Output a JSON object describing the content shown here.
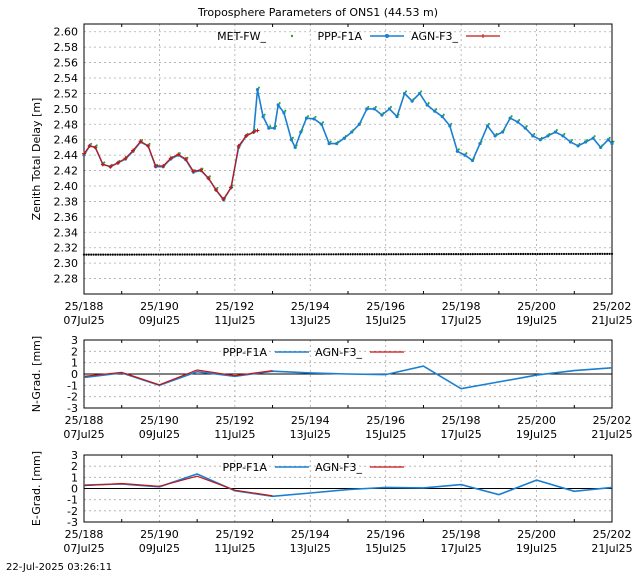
{
  "title": "Troposphere Parameters of ONS1 (44.53 m)",
  "timestamp": "22-Jul-2025 03:26:11",
  "colors": {
    "met": "#22aa22",
    "ppp": "#1a7fd0",
    "agn": "#cc1111",
    "zero_line": "#000000",
    "grid": "#aaaaaa"
  },
  "x_ticks": [
    {
      "doy": "25/188",
      "date": "07Jul25"
    },
    {
      "doy": "25/190",
      "date": "09Jul25"
    },
    {
      "doy": "25/192",
      "date": "11Jul25"
    },
    {
      "doy": "25/194",
      "date": "13Jul25"
    },
    {
      "doy": "25/196",
      "date": "15Jul25"
    },
    {
      "doy": "25/198",
      "date": "17Jul25"
    },
    {
      "doy": "25/200",
      "date": "19Jul25"
    },
    {
      "doy": "25/202",
      "date": "21Jul25"
    }
  ],
  "chart_data": [
    {
      "type": "line",
      "ylabel": "Zenith Total Delay [m]",
      "xlim": [
        188,
        202
      ],
      "ylim": [
        2.26,
        2.61
      ],
      "yticks": [
        "2.28",
        "2.30",
        "2.32",
        "2.34",
        "2.36",
        "2.38",
        "2.40",
        "2.42",
        "2.44",
        "2.46",
        "2.48",
        "2.50",
        "2.52",
        "2.54",
        "2.56",
        "2.58",
        "2.60"
      ],
      "grid": true,
      "legend_position": "top",
      "series": [
        {
          "name": "MET-FW_",
          "style": "dots",
          "color": "#22aa22",
          "x": [
            188.0,
            202.0
          ],
          "y": [
            2.311,
            2.312
          ]
        },
        {
          "name": "PPP-F1A",
          "style": "line-points",
          "color": "#1a7fd0",
          "x": [
            188.0,
            188.15,
            188.3,
            188.5,
            188.7,
            188.9,
            189.1,
            189.3,
            189.5,
            189.7,
            189.9,
            190.1,
            190.3,
            190.5,
            190.7,
            190.9,
            191.1,
            191.3,
            191.5,
            191.7,
            191.9,
            192.1,
            192.3,
            192.5,
            192.6,
            192.75,
            192.9,
            193.05,
            193.15,
            193.3,
            193.5,
            193.6,
            193.75,
            193.9,
            194.1,
            194.3,
            194.5,
            194.7,
            194.9,
            195.1,
            195.3,
            195.5,
            195.7,
            195.9,
            196.1,
            196.3,
            196.5,
            196.7,
            196.9,
            197.1,
            197.3,
            197.5,
            197.7,
            197.9,
            198.1,
            198.3,
            198.5,
            198.7,
            198.9,
            199.1,
            199.3,
            199.5,
            199.7,
            199.9,
            200.1,
            200.3,
            200.5,
            200.7,
            200.9,
            201.1,
            201.3,
            201.5,
            201.7,
            201.9,
            202.0
          ],
          "y": [
            2.44,
            2.452,
            2.45,
            2.428,
            2.425,
            2.43,
            2.435,
            2.445,
            2.457,
            2.452,
            2.425,
            2.425,
            2.435,
            2.44,
            2.434,
            2.418,
            2.42,
            2.41,
            2.395,
            2.382,
            2.398,
            2.45,
            2.465,
            2.47,
            2.525,
            2.49,
            2.475,
            2.475,
            2.505,
            2.495,
            2.46,
            2.45,
            2.47,
            2.488,
            2.487,
            2.48,
            2.455,
            2.455,
            2.462,
            2.47,
            2.48,
            2.5,
            2.5,
            2.492,
            2.5,
            2.49,
            2.52,
            2.51,
            2.52,
            2.505,
            2.497,
            2.49,
            2.478,
            2.445,
            2.44,
            2.433,
            2.455,
            2.478,
            2.465,
            2.47,
            2.488,
            2.483,
            2.475,
            2.465,
            2.46,
            2.465,
            2.47,
            2.465,
            2.457,
            2.452,
            2.457,
            2.462,
            2.45,
            2.46,
            2.455
          ]
        },
        {
          "name": "AGN-F3_",
          "style": "line-crosses",
          "color": "#cc1111",
          "x": [
            188.0,
            188.15,
            188.3,
            188.5,
            188.7,
            188.9,
            189.1,
            189.3,
            189.5,
            189.7,
            189.9,
            190.1,
            190.3,
            190.5,
            190.7,
            190.9,
            191.1,
            191.3,
            191.5,
            191.7,
            191.9,
            192.1,
            192.3,
            192.5,
            192.6
          ],
          "y": [
            2.442,
            2.452,
            2.45,
            2.428,
            2.425,
            2.43,
            2.436,
            2.446,
            2.458,
            2.452,
            2.426,
            2.426,
            2.436,
            2.441,
            2.435,
            2.419,
            2.421,
            2.41,
            2.395,
            2.383,
            2.398,
            2.452,
            2.465,
            2.47,
            2.472
          ]
        }
      ]
    },
    {
      "type": "line",
      "ylabel": "N-Grad. [mm]",
      "xlim": [
        188,
        202
      ],
      "ylim": [
        -3,
        3
      ],
      "yticks": [
        "-3",
        "-2",
        "-1",
        "0",
        "1",
        "2",
        "3"
      ],
      "grid": true,
      "legend_position": "top",
      "series": [
        {
          "name": "PPP-F1A",
          "color": "#1a7fd0",
          "x": [
            188,
            189,
            190,
            191,
            192,
            193,
            194,
            195,
            196,
            197,
            198,
            199,
            200,
            201,
            202
          ],
          "y": [
            -0.3,
            0.1,
            -1.0,
            0.2,
            -0.2,
            0.25,
            0.1,
            0.0,
            -0.05,
            0.7,
            -1.3,
            -0.7,
            -0.1,
            0.3,
            0.55
          ]
        },
        {
          "name": "AGN-F3_",
          "color": "#cc1111",
          "x": [
            188,
            189,
            190,
            191,
            192,
            193
          ],
          "y": [
            -0.2,
            0.15,
            -0.95,
            0.35,
            -0.15,
            0.3
          ]
        }
      ]
    },
    {
      "type": "line",
      "ylabel": "E-Grad. [mm]",
      "xlim": [
        188,
        202
      ],
      "ylim": [
        -3,
        3
      ],
      "yticks": [
        "-3",
        "-2",
        "-1",
        "0",
        "1",
        "2",
        "3"
      ],
      "grid": true,
      "legend_position": "top",
      "series": [
        {
          "name": "PPP-F1A",
          "color": "#1a7fd0",
          "x": [
            188,
            189,
            190,
            191,
            192,
            193,
            194,
            195,
            196,
            197,
            198,
            199,
            200,
            201,
            202
          ],
          "y": [
            0.3,
            0.4,
            0.15,
            1.3,
            -0.2,
            -0.7,
            -0.4,
            -0.1,
            0.1,
            0.05,
            0.35,
            -0.55,
            0.75,
            -0.25,
            0.1
          ]
        },
        {
          "name": "AGN-F3_",
          "color": "#cc1111",
          "x": [
            188,
            189,
            190,
            191,
            192,
            193
          ],
          "y": [
            0.25,
            0.45,
            0.2,
            1.1,
            -0.15,
            -0.65
          ]
        }
      ]
    }
  ]
}
